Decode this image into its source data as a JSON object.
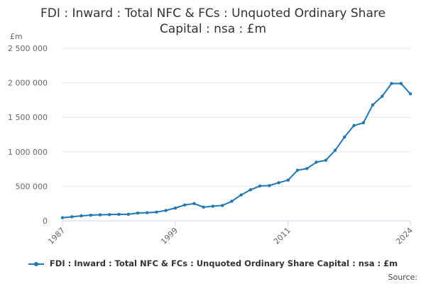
{
  "chart_data": {
    "type": "line",
    "title_lines": [
      "FDI : Inward : Total NFC & FCs : Unquoted Ordinary Share",
      "Capital : nsa : £m"
    ],
    "unit_label": "£m",
    "source_label": "Source:",
    "legend_placement": "bottom",
    "grid": true,
    "color": "#1f77b4",
    "ylim": [
      0,
      2500000
    ],
    "yticks": [
      {
        "value": 0,
        "label": "0"
      },
      {
        "value": 500000,
        "label": "500 000"
      },
      {
        "value": 1000000,
        "label": "1 000 000"
      },
      {
        "value": 1500000,
        "label": "1 500 000"
      },
      {
        "value": 2000000,
        "label": "2 000 000"
      },
      {
        "value": 2500000,
        "label": "2 500 000"
      }
    ],
    "xlim": [
      1987,
      2024
    ],
    "xticks": [
      1987,
      1999,
      2011,
      2024
    ],
    "series": [
      {
        "name": "FDI : Inward : Total NFC & FCs : Unquoted Ordinary Share Capital : nsa : £m",
        "x": [
          1987,
          1988,
          1989,
          1990,
          1991,
          1992,
          1993,
          1994,
          1995,
          1996,
          1997,
          1998,
          1999,
          2000,
          2001,
          2002,
          2003,
          2004,
          2005,
          2006,
          2007,
          2008,
          2009,
          2010,
          2011,
          2012,
          2013,
          2014,
          2015,
          2016,
          2017,
          2018,
          2019,
          2020,
          2021,
          2022,
          2023,
          2024
        ],
        "y": [
          45000,
          58000,
          72000,
          82000,
          87000,
          90000,
          94000,
          94000,
          113000,
          117000,
          127000,
          150000,
          185000,
          230000,
          250000,
          198000,
          212000,
          222000,
          283000,
          375000,
          450000,
          505000,
          510000,
          552000,
          590000,
          733000,
          757000,
          850000,
          877000,
          1022000,
          1215000,
          1380000,
          1420000,
          1680000,
          1805000,
          1990000,
          1990000,
          1840000
        ]
      }
    ]
  }
}
